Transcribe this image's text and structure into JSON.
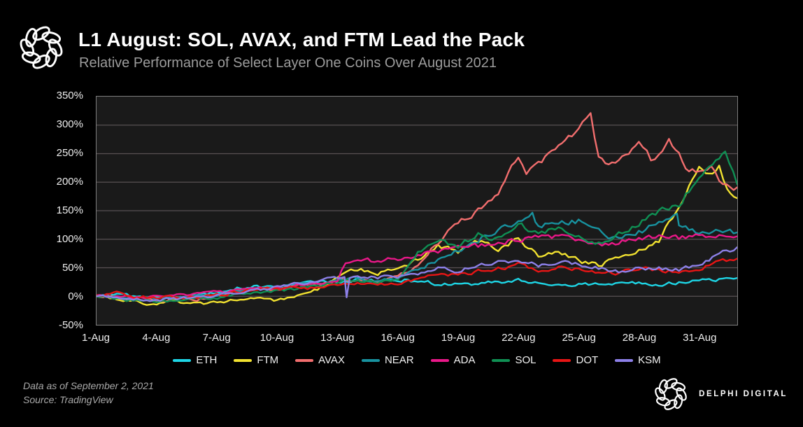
{
  "header": {
    "title": "L1 August: SOL, AVAX, and FTM Lead the Pack",
    "subtitle": "Relative Performance of Select Layer One Coins Over August 2021"
  },
  "footer": {
    "data_as_of": "Data as of September 2, 2021",
    "source": "Source: TradingView",
    "brand": "DELPHI DIGITAL"
  },
  "icons": {
    "header_logo": "delphi-knot-logo",
    "footer_logo": "delphi-knot-logo"
  },
  "colors": {
    "background": "#000000",
    "plot_background": "#1a1a1a",
    "grid": "#585153",
    "plot_border": "#7e7e7e",
    "title": "#ffffff",
    "subtitle": "#9c9c9c",
    "axis_text": "#ededed"
  },
  "chart_data": {
    "type": "line",
    "title": "L1 August: SOL, AVAX, and FTM Lead the Pack",
    "subtitle": "Relative Performance of Select Layer One Coins Over August 2021",
    "xlabel": "",
    "ylabel": "",
    "grid": true,
    "legend_position": "bottom",
    "y_axis": {
      "unit": "%",
      "min": -50,
      "max": 350,
      "tick_values": [
        350,
        300,
        250,
        200,
        150,
        100,
        50,
        0,
        -50
      ],
      "tick_labels": [
        "350%",
        "300%",
        "250%",
        "200%",
        "150%",
        "100%",
        "50%",
        "0%",
        "-50%"
      ]
    },
    "x_axis": {
      "min_day": 1,
      "max_day": 32.9,
      "tick_days": [
        1,
        4,
        7,
        10,
        13,
        16,
        19,
        22,
        25,
        28,
        31
      ],
      "tick_labels": [
        "1-Aug",
        "4-Aug",
        "7-Aug",
        "10-Aug",
        "13-Aug",
        "16-Aug",
        "19-Aug",
        "22-Aug",
        "25-Aug",
        "28-Aug",
        "31-Aug"
      ],
      "note": "day values are August dates; 32 = 1-Sep, 32.9 = 2-Sep (right edge)"
    },
    "series": [
      {
        "name": "ETH",
        "color": "#1ed6e6",
        "points": [
          [
            1,
            0
          ],
          [
            2,
            2
          ],
          [
            3,
            -1
          ],
          [
            4,
            -3
          ],
          [
            5,
            -1
          ],
          [
            6,
            1
          ],
          [
            7,
            6
          ],
          [
            8,
            14
          ],
          [
            9,
            17
          ],
          [
            10,
            15
          ],
          [
            11,
            20
          ],
          [
            12,
            24
          ],
          [
            13,
            26
          ],
          [
            14,
            30
          ],
          [
            15,
            27
          ],
          [
            16,
            30
          ],
          [
            17,
            26
          ],
          [
            18,
            22
          ],
          [
            19,
            20
          ],
          [
            20,
            22
          ],
          [
            21,
            25
          ],
          [
            22,
            27
          ],
          [
            23,
            22
          ],
          [
            24,
            24
          ],
          [
            25,
            21
          ],
          [
            26,
            23
          ],
          [
            27,
            21
          ],
          [
            28,
            24
          ],
          [
            29,
            21
          ],
          [
            30,
            25
          ],
          [
            31,
            27
          ],
          [
            32,
            29
          ],
          [
            32.9,
            32
          ]
        ]
      },
      {
        "name": "FTM",
        "color": "#f2e230",
        "points": [
          [
            1,
            0
          ],
          [
            2,
            -6
          ],
          [
            3,
            -10
          ],
          [
            4,
            -13
          ],
          [
            5,
            -9
          ],
          [
            6,
            -14
          ],
          [
            7,
            -10
          ],
          [
            8,
            -7
          ],
          [
            9,
            -4
          ],
          [
            10,
            -9
          ],
          [
            11,
            2
          ],
          [
            12,
            12
          ],
          [
            13,
            34
          ],
          [
            14,
            48
          ],
          [
            15,
            41
          ],
          [
            16,
            50
          ],
          [
            17,
            64
          ],
          [
            18,
            90
          ],
          [
            19,
            78
          ],
          [
            20,
            95
          ],
          [
            21,
            84
          ],
          [
            22,
            100
          ],
          [
            23,
            72
          ],
          [
            24,
            80
          ],
          [
            25,
            62
          ],
          [
            26,
            55
          ],
          [
            27,
            70
          ],
          [
            28,
            80
          ],
          [
            29,
            96
          ],
          [
            30,
            160
          ],
          [
            31,
            228
          ],
          [
            31.5,
            212
          ],
          [
            32,
            225
          ],
          [
            32.4,
            190
          ],
          [
            32.9,
            172
          ]
        ]
      },
      {
        "name": "AVAX",
        "color": "#f26e6e",
        "points": [
          [
            1,
            0
          ],
          [
            2,
            -3
          ],
          [
            3,
            -6
          ],
          [
            4,
            -8
          ],
          [
            5,
            -4
          ],
          [
            6,
            -5
          ],
          [
            7,
            1
          ],
          [
            8,
            8
          ],
          [
            9,
            11
          ],
          [
            10,
            14
          ],
          [
            11,
            18
          ],
          [
            12,
            20
          ],
          [
            13,
            28
          ],
          [
            14,
            32
          ],
          [
            15,
            27
          ],
          [
            16,
            33
          ],
          [
            17,
            55
          ],
          [
            18,
            95
          ],
          [
            19,
            130
          ],
          [
            20,
            152
          ],
          [
            21,
            185
          ],
          [
            22,
            250
          ],
          [
            22.4,
            222
          ],
          [
            23,
            235
          ],
          [
            24,
            262
          ],
          [
            25,
            290
          ],
          [
            25.6,
            320
          ],
          [
            26,
            242
          ],
          [
            26.5,
            228
          ],
          [
            27,
            232
          ],
          [
            28,
            268
          ],
          [
            28.6,
            240
          ],
          [
            29,
            252
          ],
          [
            29.5,
            272
          ],
          [
            30,
            248
          ],
          [
            30.5,
            215
          ],
          [
            31,
            222
          ],
          [
            31.6,
            230
          ],
          [
            32,
            205
          ],
          [
            32.9,
            191
          ]
        ]
      },
      {
        "name": "NEAR",
        "color": "#18929f",
        "points": [
          [
            1,
            0
          ],
          [
            2,
            -2
          ],
          [
            3,
            -4
          ],
          [
            4,
            -5
          ],
          [
            5,
            -3
          ],
          [
            6,
            0
          ],
          [
            7,
            3
          ],
          [
            8,
            10
          ],
          [
            9,
            14
          ],
          [
            10,
            16
          ],
          [
            11,
            19
          ],
          [
            12,
            21
          ],
          [
            13,
            28
          ],
          [
            14,
            31
          ],
          [
            15,
            28
          ],
          [
            16,
            32
          ],
          [
            17,
            45
          ],
          [
            18,
            65
          ],
          [
            19,
            80
          ],
          [
            20,
            100
          ],
          [
            21,
            115
          ],
          [
            22,
            130
          ],
          [
            22.7,
            152
          ],
          [
            23,
            122
          ],
          [
            24,
            128
          ],
          [
            25,
            132
          ],
          [
            26,
            112
          ],
          [
            27,
            100
          ],
          [
            28,
            112
          ],
          [
            29,
            128
          ],
          [
            29.9,
            142
          ],
          [
            30,
            120
          ],
          [
            31,
            113
          ],
          [
            32,
            120
          ],
          [
            32.9,
            112
          ]
        ]
      },
      {
        "name": "ADA",
        "color": "#ea1889",
        "points": [
          [
            1,
            2
          ],
          [
            2,
            0
          ],
          [
            3,
            -2
          ],
          [
            4,
            0
          ],
          [
            5,
            3
          ],
          [
            6,
            5
          ],
          [
            7,
            8
          ],
          [
            8,
            10
          ],
          [
            9,
            12
          ],
          [
            10,
            15
          ],
          [
            11,
            20
          ],
          [
            12,
            24
          ],
          [
            13,
            26
          ],
          [
            13.4,
            60
          ],
          [
            14,
            65
          ],
          [
            15,
            60
          ],
          [
            16,
            66
          ],
          [
            17,
            70
          ],
          [
            18,
            78
          ],
          [
            19,
            85
          ],
          [
            20,
            88
          ],
          [
            21,
            95
          ],
          [
            22,
            100
          ],
          [
            23,
            106
          ],
          [
            24,
            103
          ],
          [
            25,
            98
          ],
          [
            26,
            90
          ],
          [
            27,
            95
          ],
          [
            28,
            102
          ],
          [
            29,
            105
          ],
          [
            30,
            102
          ],
          [
            31,
            104
          ],
          [
            32,
            103
          ],
          [
            32.9,
            105
          ]
        ]
      },
      {
        "name": "SOL",
        "color": "#0f9054",
        "points": [
          [
            1,
            0
          ],
          [
            2,
            -5
          ],
          [
            3,
            -8
          ],
          [
            4,
            -10
          ],
          [
            5,
            -7
          ],
          [
            6,
            -5
          ],
          [
            7,
            -3
          ],
          [
            8,
            3
          ],
          [
            9,
            7
          ],
          [
            10,
            9
          ],
          [
            11,
            14
          ],
          [
            12,
            17
          ],
          [
            13,
            24
          ],
          [
            14,
            30
          ],
          [
            15,
            24
          ],
          [
            16,
            30
          ],
          [
            16.5,
            55
          ],
          [
            17,
            78
          ],
          [
            18,
            100
          ],
          [
            19,
            88
          ],
          [
            20,
            108
          ],
          [
            21,
            100
          ],
          [
            22,
            128
          ],
          [
            23,
            110
          ],
          [
            24,
            118
          ],
          [
            25,
            102
          ],
          [
            26,
            92
          ],
          [
            27,
            108
          ],
          [
            28,
            130
          ],
          [
            29,
            150
          ],
          [
            30,
            163
          ],
          [
            31,
            210
          ],
          [
            32,
            240
          ],
          [
            32.3,
            250
          ],
          [
            32.9,
            196
          ]
        ]
      },
      {
        "name": "DOT",
        "color": "#e81515",
        "points": [
          [
            1,
            2
          ],
          [
            2,
            5
          ],
          [
            3,
            0
          ],
          [
            4,
            -3
          ],
          [
            5,
            0
          ],
          [
            6,
            -2
          ],
          [
            7,
            2
          ],
          [
            8,
            8
          ],
          [
            9,
            12
          ],
          [
            10,
            14
          ],
          [
            11,
            16
          ],
          [
            12,
            14
          ],
          [
            13,
            21
          ],
          [
            14,
            25
          ],
          [
            15,
            21
          ],
          [
            16,
            25
          ],
          [
            17,
            30
          ],
          [
            18,
            40
          ],
          [
            19,
            37
          ],
          [
            20,
            44
          ],
          [
            21,
            50
          ],
          [
            22,
            55
          ],
          [
            23,
            44
          ],
          [
            24,
            50
          ],
          [
            25,
            47
          ],
          [
            26,
            44
          ],
          [
            27,
            41
          ],
          [
            28,
            48
          ],
          [
            29,
            45
          ],
          [
            30,
            44
          ],
          [
            31,
            50
          ],
          [
            32,
            60
          ],
          [
            32.9,
            66
          ]
        ]
      },
      {
        "name": "KSM",
        "color": "#8d80e8",
        "points": [
          [
            1,
            0
          ],
          [
            2,
            -2
          ],
          [
            3,
            -5
          ],
          [
            4,
            -6
          ],
          [
            5,
            -4
          ],
          [
            6,
            -2
          ],
          [
            7,
            0
          ],
          [
            8,
            8
          ],
          [
            9,
            12
          ],
          [
            10,
            15
          ],
          [
            11,
            22
          ],
          [
            12,
            27
          ],
          [
            13,
            31
          ],
          [
            13.35,
            32
          ],
          [
            13.45,
            -3
          ],
          [
            13.6,
            33
          ],
          [
            14,
            36
          ],
          [
            15,
            32
          ],
          [
            16,
            35
          ],
          [
            17,
            40
          ],
          [
            18,
            50
          ],
          [
            19,
            44
          ],
          [
            20,
            55
          ],
          [
            21,
            58
          ],
          [
            22,
            64
          ],
          [
            23,
            54
          ],
          [
            24,
            60
          ],
          [
            25,
            57
          ],
          [
            26,
            50
          ],
          [
            27,
            44
          ],
          [
            28,
            52
          ],
          [
            29,
            49
          ],
          [
            30,
            47
          ],
          [
            31,
            55
          ],
          [
            32,
            72
          ],
          [
            32.9,
            86
          ]
        ]
      }
    ]
  }
}
